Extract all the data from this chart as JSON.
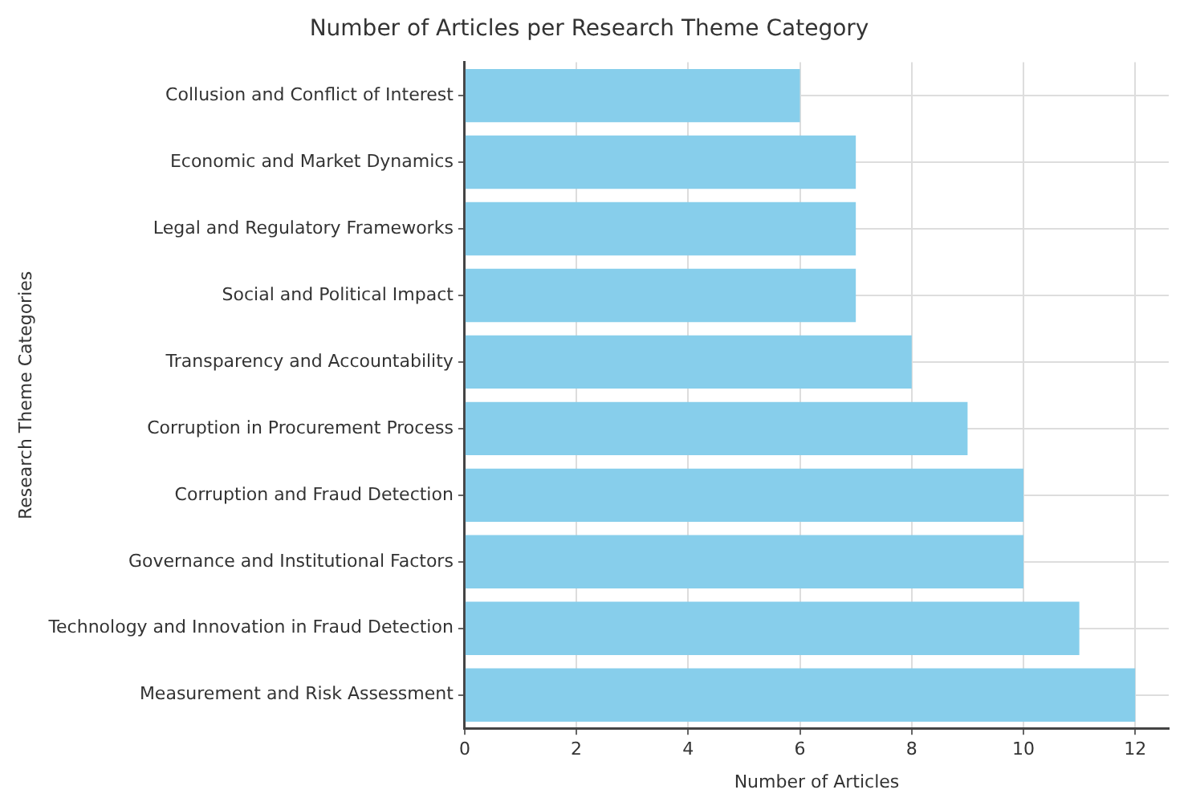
{
  "chart_data": {
    "type": "bar",
    "orientation": "horizontal",
    "title": "Number of Articles per Research Theme Category",
    "xlabel": "Number of Articles",
    "ylabel": "Research Theme Categories",
    "categories": [
      "Collusion and Conflict of Interest",
      "Economic and Market Dynamics",
      "Legal and Regulatory Frameworks",
      "Social and Political Impact",
      "Transparency and Accountability",
      "Corruption in Procurement Process",
      "Corruption and Fraud Detection",
      "Governance and Institutional Factors",
      "Technology and Innovation in Fraud Detection",
      "Measurement and Risk Assessment"
    ],
    "values": [
      6,
      7,
      7,
      7,
      8,
      9,
      10,
      10,
      11,
      12
    ],
    "color": "#87ceeb",
    "xlim": [
      0,
      12.6
    ],
    "xticks": [
      0,
      2,
      4,
      6,
      8,
      10,
      12
    ],
    "grid": true
  }
}
